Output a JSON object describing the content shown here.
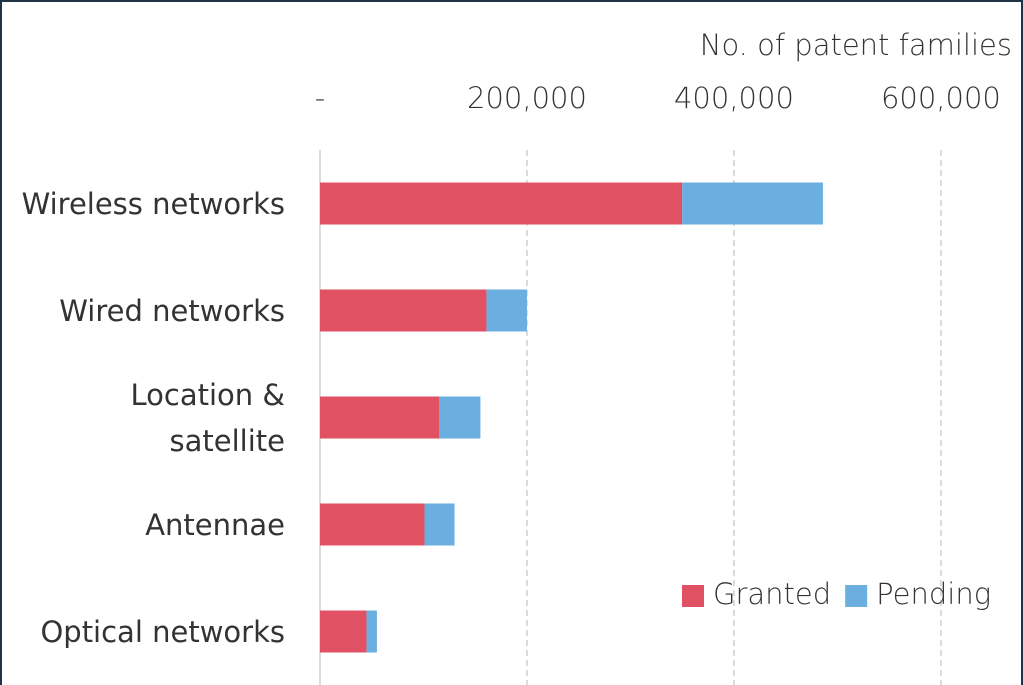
{
  "chart_data": {
    "type": "stacked_bar_horizontal",
    "x_label": "No. of patent families",
    "categories": [
      "Wireless networks",
      "Wired networks",
      "Location &\nsatellite",
      "Antennae",
      "Optical networks"
    ],
    "series": [
      {
        "name": "Granted",
        "color": "#e05263",
        "values": [
          350000,
          161000,
          115000,
          101000,
          45000
        ]
      },
      {
        "name": "Pending",
        "color": "#6aafe0",
        "values": [
          136000,
          39000,
          40000,
          29000,
          10000
        ]
      }
    ],
    "xlim": [
      0,
      660000
    ],
    "xticks": [
      {
        "value": 0,
        "label": "-"
      },
      {
        "value": 200000,
        "label": "200,000"
      },
      {
        "value": 400000,
        "label": "400,000"
      },
      {
        "value": 600000,
        "label": "600,000"
      }
    ],
    "grid": true,
    "legend": "lower right"
  }
}
